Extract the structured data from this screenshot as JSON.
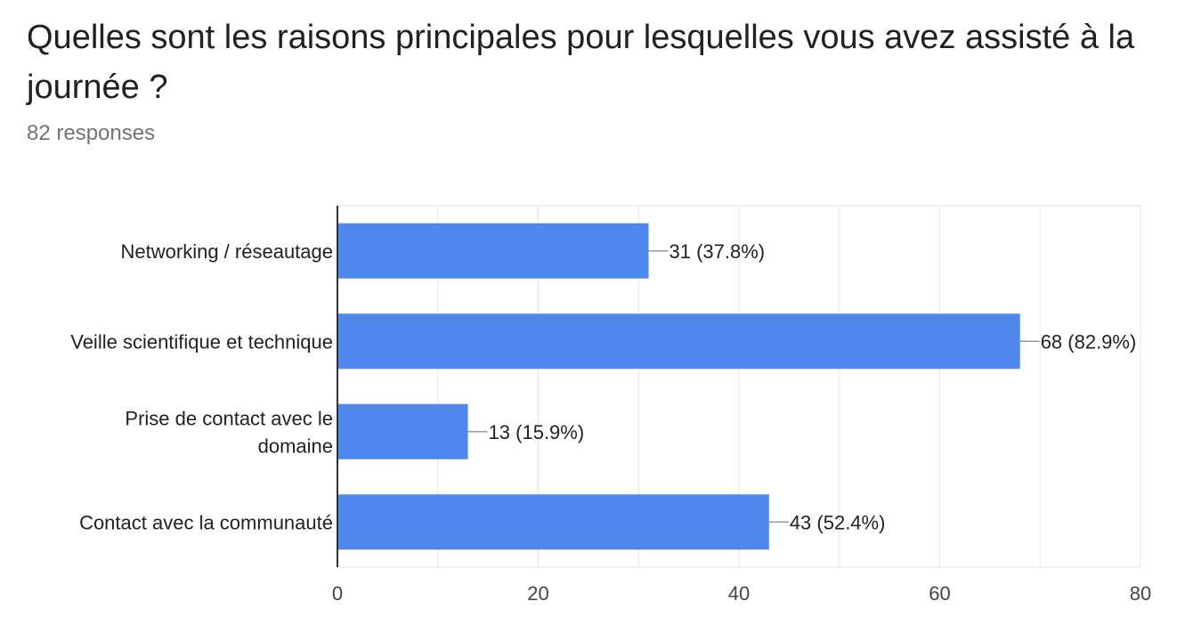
{
  "title": "Quelles sont les raisons principales pour lesquelles vous avez assisté à la journée ?",
  "subtitle": "82 responses",
  "colors": {
    "bar": "#5087ec",
    "grid": "#e6e6e6",
    "axis": "#333333",
    "connector": "#999999"
  },
  "chart_data": {
    "type": "bar",
    "orientation": "horizontal",
    "categories": [
      [
        "Networking / réseautage"
      ],
      [
        "Veille scientifique et technique"
      ],
      [
        "Prise de contact avec le",
        "domaine"
      ],
      [
        "Contact avec la communauté"
      ]
    ],
    "values": [
      31,
      68,
      13,
      43
    ],
    "data_labels": [
      "31 (37.8%)",
      "68 (82.9%)",
      "13 (15.9%)",
      "43 (52.4%)"
    ],
    "xlim": [
      0,
      80
    ],
    "xticks": [
      0,
      20,
      40,
      60,
      80
    ],
    "grid": true
  }
}
